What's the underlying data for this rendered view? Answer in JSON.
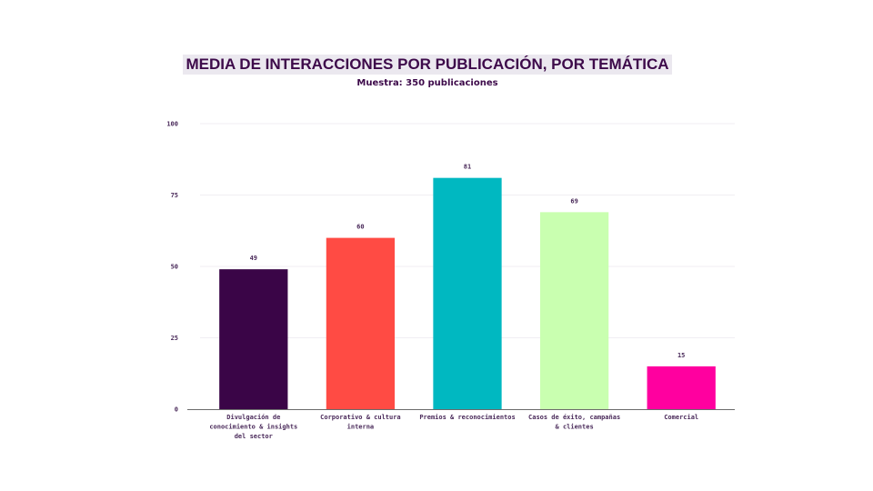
{
  "chart_data": {
    "type": "bar",
    "title": "MEDIA DE INTERACCIONES POR PUBLICACIÓN, POR TEMÁTICA",
    "subtitle": "Muestra: 350 publicaciones",
    "categories": [
      "Divulgación de conocimiento & insights del sector",
      "Corporativo & cultura interna",
      "Premios & reconocimientos",
      "Casos de éxito, campañas & clientes",
      "Comercial"
    ],
    "category_lines": [
      [
        "Divulgación de",
        "conocimiento & insights",
        "del sector"
      ],
      [
        "Corporativo & cultura",
        "interna"
      ],
      [
        "Premios & reconocimientos"
      ],
      [
        "Casos de éxito, campañas",
        "& clientes"
      ],
      [
        "Comercial"
      ]
    ],
    "values": [
      49,
      60,
      81,
      69,
      15
    ],
    "data_labels": [
      "49",
      "60",
      "81",
      "69",
      "15"
    ],
    "colors": [
      "#3a0547",
      "#ff4b44",
      "#00b8c1",
      "#c9ffb0",
      "#ff009f"
    ],
    "ylim": [
      0,
      100
    ],
    "yticks": [
      "0",
      "25",
      "50",
      "75",
      "100"
    ],
    "ytick_values": [
      0,
      25,
      50,
      75,
      100
    ],
    "grid": true,
    "xlabel": "",
    "ylabel": ""
  }
}
